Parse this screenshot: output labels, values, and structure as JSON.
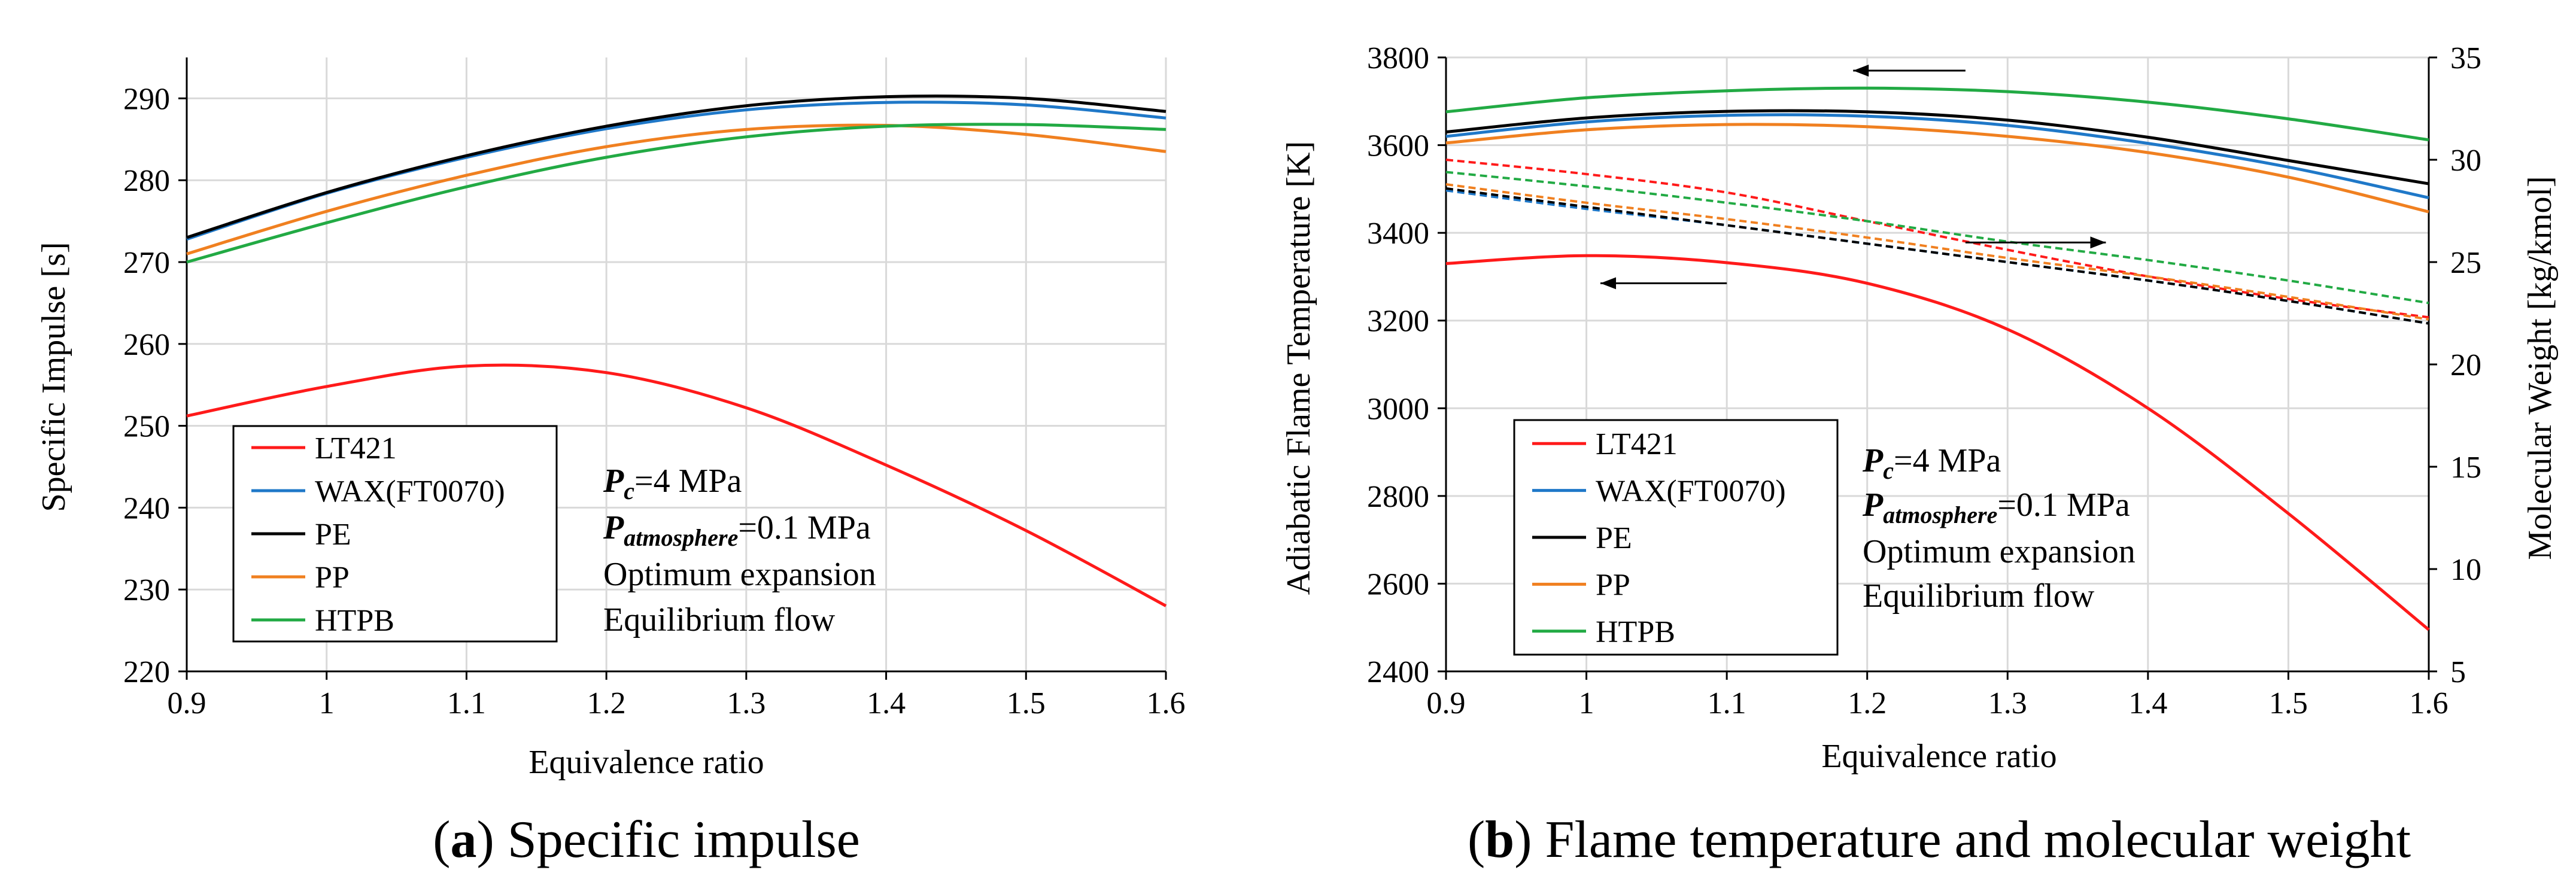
{
  "colors": {
    "LT421": "#ff1a1a",
    "WAX(FT0070)": "#1f78c8",
    "PE": "#000000",
    "PP": "#f08020",
    "HTPB": "#22aa44",
    "grid": "#d9d9d9",
    "axis": "#000000"
  },
  "chart_data": [
    {
      "id": "a",
      "type": "line",
      "caption_letter": "a",
      "caption_text": " Specific impulse",
      "xlabel": "Equivalence ratio",
      "ylabel": "Specific Impulse [s]",
      "xlim": [
        0.9,
        1.6
      ],
      "ylim": [
        220,
        295
      ],
      "x_ticks": [
        0.9,
        1.0,
        1.1,
        1.2,
        1.3,
        1.4,
        1.5,
        1.6
      ],
      "x_tick_labels": [
        "0.9",
        "1",
        "1.1",
        "1.2",
        "1.3",
        "1.4",
        "1.5",
        "1.6"
      ],
      "y_ticks": [
        220,
        230,
        240,
        250,
        260,
        270,
        280,
        290
      ],
      "y_tick_labels": [
        "220",
        "230",
        "240",
        "250",
        "260",
        "270",
        "280",
        "290"
      ],
      "x": [
        0.9,
        1.0,
        1.1,
        1.2,
        1.3,
        1.4,
        1.5,
        1.6
      ],
      "series": [
        {
          "name": "LT421",
          "values": [
            251.2,
            254.8,
            257.3,
            256.5,
            252.2,
            245.2,
            237.2,
            228.0
          ]
        },
        {
          "name": "WAX(FT0070)",
          "values": [
            272.8,
            278.4,
            282.8,
            286.3,
            288.6,
            289.5,
            289.2,
            287.6
          ]
        },
        {
          "name": "PE",
          "values": [
            273.0,
            278.5,
            283.0,
            286.6,
            289.1,
            290.2,
            290.0,
            288.4
          ]
        },
        {
          "name": "PP",
          "values": [
            271.0,
            276.2,
            280.6,
            284.1,
            286.2,
            286.7,
            285.6,
            283.5
          ]
        },
        {
          "name": "HTPB",
          "values": [
            270.0,
            274.8,
            279.2,
            282.8,
            285.3,
            286.6,
            286.8,
            286.2
          ]
        }
      ],
      "legend": [
        "LT421",
        "WAX(FT0070)",
        "PE",
        "PP",
        "HTPB"
      ],
      "annotations": {
        "pc_main": "P",
        "pc_sub": "c",
        "pc_val": "=4 MPa",
        "patm_main": "P",
        "patm_sub": "atmosphere",
        "patm_val": "=0.1 MPa",
        "line3": "Optimum expansion",
        "line4": "Equilibrium flow"
      }
    },
    {
      "id": "b",
      "type": "line",
      "caption_letter": "b",
      "caption_text": " Flame temperature and molecular weight",
      "xlabel": "Equivalence ratio",
      "ylabel": "Adiabatic Flame Temperature [K]",
      "y2label": "Molecular Weight [kg/kmol]",
      "xlim": [
        0.9,
        1.6
      ],
      "ylim": [
        2400,
        3800
      ],
      "y2lim": [
        5,
        35
      ],
      "x_ticks": [
        0.9,
        1.0,
        1.1,
        1.2,
        1.3,
        1.4,
        1.5,
        1.6
      ],
      "x_tick_labels": [
        "0.9",
        "1",
        "1.1",
        "1.2",
        "1.3",
        "1.4",
        "1.5",
        "1.6"
      ],
      "y_ticks": [
        2400,
        2600,
        2800,
        3000,
        3200,
        3400,
        3600,
        3800
      ],
      "y_tick_labels": [
        "2400",
        "2600",
        "2800",
        "3000",
        "3200",
        "3400",
        "3600",
        "3800"
      ],
      "y2_ticks": [
        5,
        10,
        15,
        20,
        25,
        30,
        35
      ],
      "y2_tick_labels": [
        "5",
        "10",
        "15",
        "20",
        "25",
        "30",
        "35"
      ],
      "x": [
        0.9,
        1.0,
        1.1,
        1.2,
        1.3,
        1.4,
        1.5,
        1.6
      ],
      "series": [
        {
          "name": "LT421",
          "values": [
            3330,
            3348,
            3332,
            3285,
            3180,
            3000,
            2760,
            2495
          ]
        },
        {
          "name": "WAX(FT0070)",
          "values": [
            3620,
            3653,
            3668,
            3666,
            3645,
            3604,
            3550,
            3480
          ]
        },
        {
          "name": "PE",
          "values": [
            3630,
            3662,
            3677,
            3676,
            3657,
            3618,
            3565,
            3512
          ]
        },
        {
          "name": "PP",
          "values": [
            3605,
            3635,
            3647,
            3642,
            3620,
            3583,
            3527,
            3448
          ]
        },
        {
          "name": "HTPB",
          "values": [
            3676,
            3708,
            3724,
            3730,
            3722,
            3698,
            3660,
            3612
          ]
        }
      ],
      "series_y2": [
        {
          "name": "LT421",
          "values": [
            30.0,
            29.3,
            28.4,
            27.0,
            25.6,
            24.3,
            23.2,
            22.3
          ]
        },
        {
          "name": "WAX(FT0070)",
          "values": [
            28.5,
            27.6,
            26.8,
            25.9,
            25.0,
            24.1,
            23.1,
            22.0
          ]
        },
        {
          "name": "PE",
          "values": [
            28.6,
            27.7,
            26.8,
            25.9,
            25.0,
            24.1,
            23.1,
            22.0
          ]
        },
        {
          "name": "PP",
          "values": [
            28.8,
            27.9,
            27.1,
            26.2,
            25.2,
            24.3,
            23.3,
            22.2
          ]
        },
        {
          "name": "HTPB",
          "values": [
            29.4,
            28.7,
            27.9,
            27.0,
            26.0,
            25.1,
            24.1,
            23.0
          ]
        }
      ],
      "legend": [
        "LT421",
        "WAX(FT0070)",
        "PE",
        "PP",
        "HTPB"
      ],
      "arrows": [
        {
          "from": [
            1.27,
            3770
          ],
          "to": [
            1.19,
            3770
          ]
        },
        {
          "from": [
            1.1,
            3285
          ],
          "to": [
            1.01,
            3285
          ]
        },
        {
          "from": [
            1.27,
            3378
          ],
          "to": [
            1.37,
            3378
          ]
        }
      ],
      "annotations": {
        "pc_main": "P",
        "pc_sub": "c",
        "pc_val": "=4 MPa",
        "patm_main": "P",
        "patm_sub": "atmosphere",
        "patm_val": "=0.1 MPa",
        "line3": "Optimum expansion",
        "line4": "Equilibrium flow"
      }
    }
  ]
}
